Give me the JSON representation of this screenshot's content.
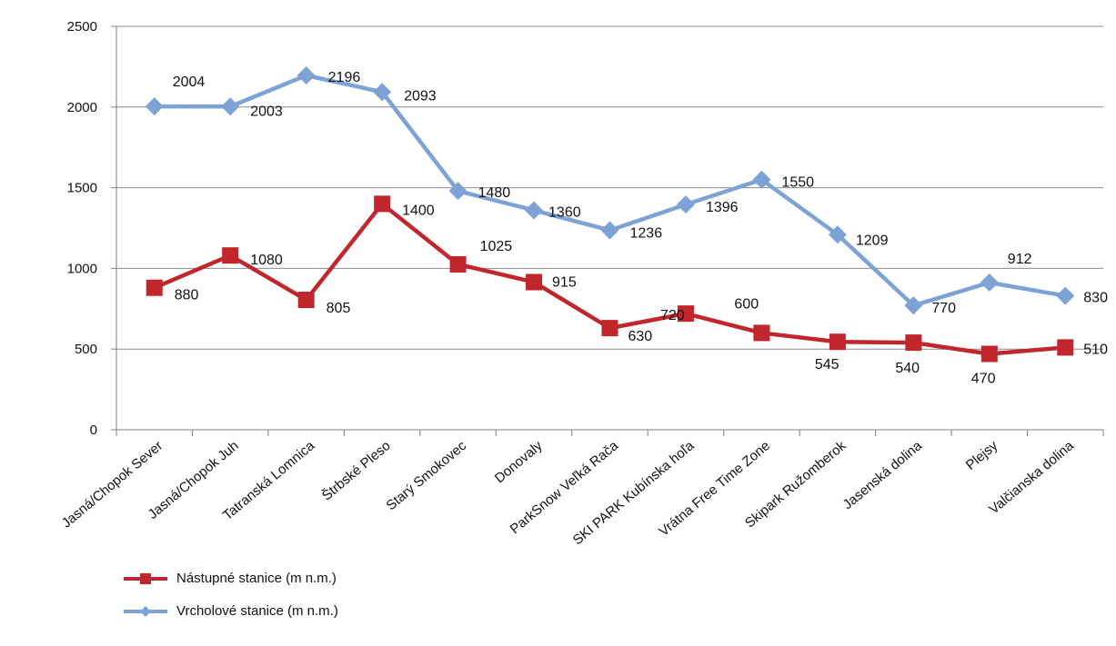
{
  "chart_data": {
    "type": "line",
    "categories": [
      "Jasná/Chopok Sever",
      "Jasná/Chopok Juh",
      "Tatranská Lomnica",
      "Štrbské Pleso",
      "Starý Smokovec",
      "Donovaly",
      "ParkSnow Veľká Rača",
      "SKI PARK Kubínska hoľa",
      "Vrátna Free Time Zone",
      "Skipark Ružomberok",
      "Jasenská dolina",
      "Plejsy",
      "Valčianska dolina"
    ],
    "series": [
      {
        "name": "Nástupné stanice (m n.m.)",
        "values": [
          880,
          1080,
          805,
          1400,
          1025,
          915,
          630,
          720,
          600,
          545,
          540,
          470,
          510
        ],
        "labels": [
          "880",
          "1080",
          "805",
          "1400",
          "1025",
          "915",
          "630",
          "720",
          "600",
          "545",
          "540",
          "470",
          "510"
        ],
        "color": "#C0262C",
        "marker": "square"
      },
      {
        "name": "Vrcholové stanice (m n.m.)",
        "values": [
          2004,
          2003,
          2196,
          2093,
          1480,
          1360,
          1236,
          1396,
          1550,
          1209,
          770,
          912,
          830
        ],
        "labels": [
          "2004",
          "2003",
          "2196",
          "2093",
          "1480",
          "1360",
          "1236",
          "1396",
          "1550",
          "1209",
          "770",
          "912",
          "830"
        ],
        "color": "#7DA2D6",
        "marker": "diamond"
      }
    ],
    "yticks": [
      "0",
      "500",
      "1000",
      "1500",
      "2000",
      "2500"
    ],
    "ylim": [
      0,
      2500
    ],
    "grid": true,
    "legend_position": "bottom-left"
  }
}
